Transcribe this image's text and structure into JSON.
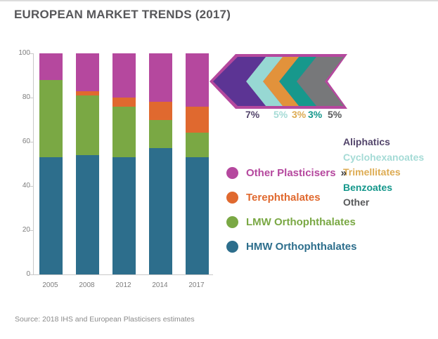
{
  "page": {
    "title": "EUROPEAN MARKET TRENDS (2017)",
    "source": "Source: 2018 IHS and European Plasticisers estimates"
  },
  "chart_data": [
    {
      "type": "bar",
      "stacked": true,
      "title": "EUROPEAN MARKET TRENDS (2017)",
      "categories": [
        "2005",
        "2008",
        "2012",
        "2014",
        "2017"
      ],
      "series": [
        {
          "name": "HMW Orthophthalates",
          "color": "#2d6e8c",
          "values": [
            53,
            54,
            53,
            57,
            53
          ]
        },
        {
          "name": "LMW Orthophthalates",
          "color": "#7aa844",
          "values": [
            35,
            27,
            23,
            13,
            11
          ]
        },
        {
          "name": "Terephthalates",
          "color": "#e0692f",
          "values": [
            0,
            2,
            4,
            8,
            12
          ]
        },
        {
          "name": "Other Plasticisers",
          "color": "#b5489e",
          "values": [
            12,
            17,
            20,
            22,
            24
          ]
        }
      ],
      "xlabel": "",
      "ylabel": "",
      "ylim": [
        0,
        100
      ],
      "yticks": [
        0,
        20,
        40,
        60,
        80,
        100
      ],
      "grid": false,
      "legend_position": "right"
    },
    {
      "type": "bar",
      "categories": [
        "Aliphatics",
        "Cyclohexanoates",
        "Trimellitates",
        "Benzoates",
        "Other"
      ],
      "values": [
        7,
        5,
        3,
        3,
        5
      ],
      "tick_labels": [
        "7%",
        "5%",
        "3%",
        "3%",
        "5%"
      ],
      "segment_colors": [
        "#5c3494",
        "#97d8d3",
        "#e2923b",
        "#17988c",
        "#77787a"
      ],
      "label_colors": [
        "#53456b",
        "#a5dbd6",
        "#ddab52",
        "#14978b",
        "#58595b"
      ],
      "border_color": "#b5489e"
    }
  ],
  "legend": {
    "items": [
      {
        "label": "Other Plasticisers",
        "color": "#b5489e",
        "suffix": "»"
      },
      {
        "label": "Terephthalates",
        "color": "#e0692f"
      },
      {
        "label": "LMW Orthophthalates",
        "color": "#7aa844"
      },
      {
        "label": "HMW Orthophthalates",
        "color": "#2d6e8c"
      }
    ]
  }
}
